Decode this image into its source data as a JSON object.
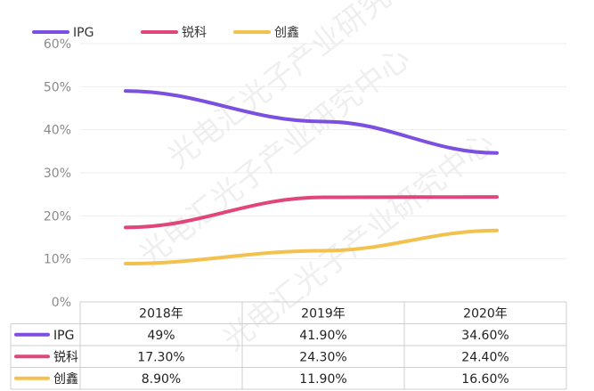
{
  "chart_data": {
    "type": "line",
    "categories": [
      "2018年",
      "2019年",
      "2020年"
    ],
    "series": [
      {
        "name": "IPG",
        "values": [
          49,
          41.9,
          34.6
        ],
        "labels": [
          "49%",
          "41.90%",
          "34.60%"
        ],
        "color": "#7b4fe0"
      },
      {
        "name": "锐科",
        "values": [
          17.3,
          24.3,
          24.4
        ],
        "labels": [
          "17.30%",
          "24.30%",
          "24.40%"
        ],
        "color": "#e0457b"
      },
      {
        "name": "创鑫",
        "values": [
          8.9,
          11.9,
          16.6
        ],
        "labels": [
          "8.90%",
          "11.90%",
          "16.60%"
        ],
        "color": "#f2c14e"
      }
    ],
    "ylim": [
      0,
      60
    ],
    "yticks": [
      "0%",
      "10%",
      "20%",
      "30%",
      "40%",
      "50%",
      "60%"
    ],
    "grid": true,
    "legend": "top-left",
    "watermark": "光电汇光子产业研究中心"
  }
}
